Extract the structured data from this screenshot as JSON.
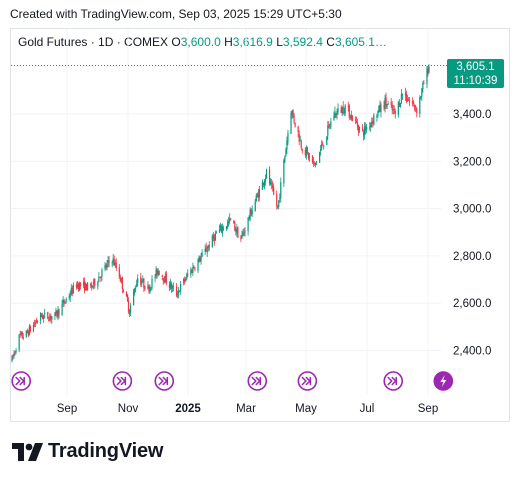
{
  "caption": "Created with TradingView.com, Sep 03, 2025 15:29 UTC+5:30",
  "legend": {
    "symbol": "Gold Futures · 1D · COMEX",
    "o_label": "O",
    "o_value": "3,600.0",
    "h_label": "H",
    "h_value": "3,616.9",
    "l_label": "L",
    "l_value": "3,592.4",
    "c_label": "C",
    "c_value": "3,605.1…"
  },
  "last_price": {
    "price": "3,605.1",
    "countdown": "11:10:39"
  },
  "brand": "TradingView",
  "colors": {
    "up": "#089981",
    "down": "#f23645",
    "event": "#9c27b0",
    "grid": "#f0f3fa"
  },
  "chart_data": {
    "type": "candlestick",
    "instrument": "Gold Futures",
    "timeframe": "1D",
    "exchange": "COMEX",
    "x_ticks": [
      "Sep",
      "Nov",
      "2025",
      "Mar",
      "May",
      "Jul",
      "Sep"
    ],
    "y_ticks": [
      "2,400.0",
      "2,600.0",
      "2,800.0",
      "3,000.0",
      "3,200.0",
      "3,400.0"
    ],
    "ylim": [
      2330,
      3700
    ],
    "last_close": 3605.1,
    "close_path": [
      [
        "2024-07-22",
        2360
      ],
      [
        "2024-07-29",
        2455
      ],
      [
        "2024-08-05",
        2470
      ],
      [
        "2024-08-19",
        2545
      ],
      [
        "2024-09-02",
        2545
      ],
      [
        "2024-09-23",
        2680
      ],
      [
        "2024-10-07",
        2665
      ],
      [
        "2024-10-28",
        2790
      ],
      [
        "2024-11-04",
        2720
      ],
      [
        "2024-11-14",
        2570
      ],
      [
        "2024-11-22",
        2710
      ],
      [
        "2024-12-02",
        2660
      ],
      [
        "2024-12-12",
        2740
      ],
      [
        "2024-12-30",
        2640
      ],
      [
        "2025-01-10",
        2720
      ],
      [
        "2025-01-24",
        2800
      ],
      [
        "2025-02-07",
        2895
      ],
      [
        "2025-02-21",
        2950
      ],
      [
        "2025-03-03",
        2870
      ],
      [
        "2025-03-14",
        3000
      ],
      [
        "2025-03-28",
        3150
      ],
      [
        "2025-04-08",
        3000
      ],
      [
        "2025-04-21",
        3420
      ],
      [
        "2025-05-01",
        3270
      ],
      [
        "2025-05-14",
        3180
      ],
      [
        "2025-06-02",
        3400
      ],
      [
        "2025-06-13",
        3430
      ],
      [
        "2025-06-30",
        3320
      ],
      [
        "2025-07-22",
        3450
      ],
      [
        "2025-08-01",
        3400
      ],
      [
        "2025-08-08",
        3490
      ],
      [
        "2025-08-22",
        3420
      ],
      [
        "2025-09-03",
        3605
      ]
    ],
    "event_markers": [
      {
        "date": "2024-07-31",
        "kind": "forward"
      },
      {
        "date": "2024-11-07",
        "kind": "forward"
      },
      {
        "date": "2024-12-18",
        "kind": "forward"
      },
      {
        "date": "2025-03-19",
        "kind": "forward"
      },
      {
        "date": "2025-05-07",
        "kind": "forward"
      },
      {
        "date": "2025-07-30",
        "kind": "forward"
      },
      {
        "date": "2025-09-17",
        "kind": "lightning"
      }
    ]
  }
}
